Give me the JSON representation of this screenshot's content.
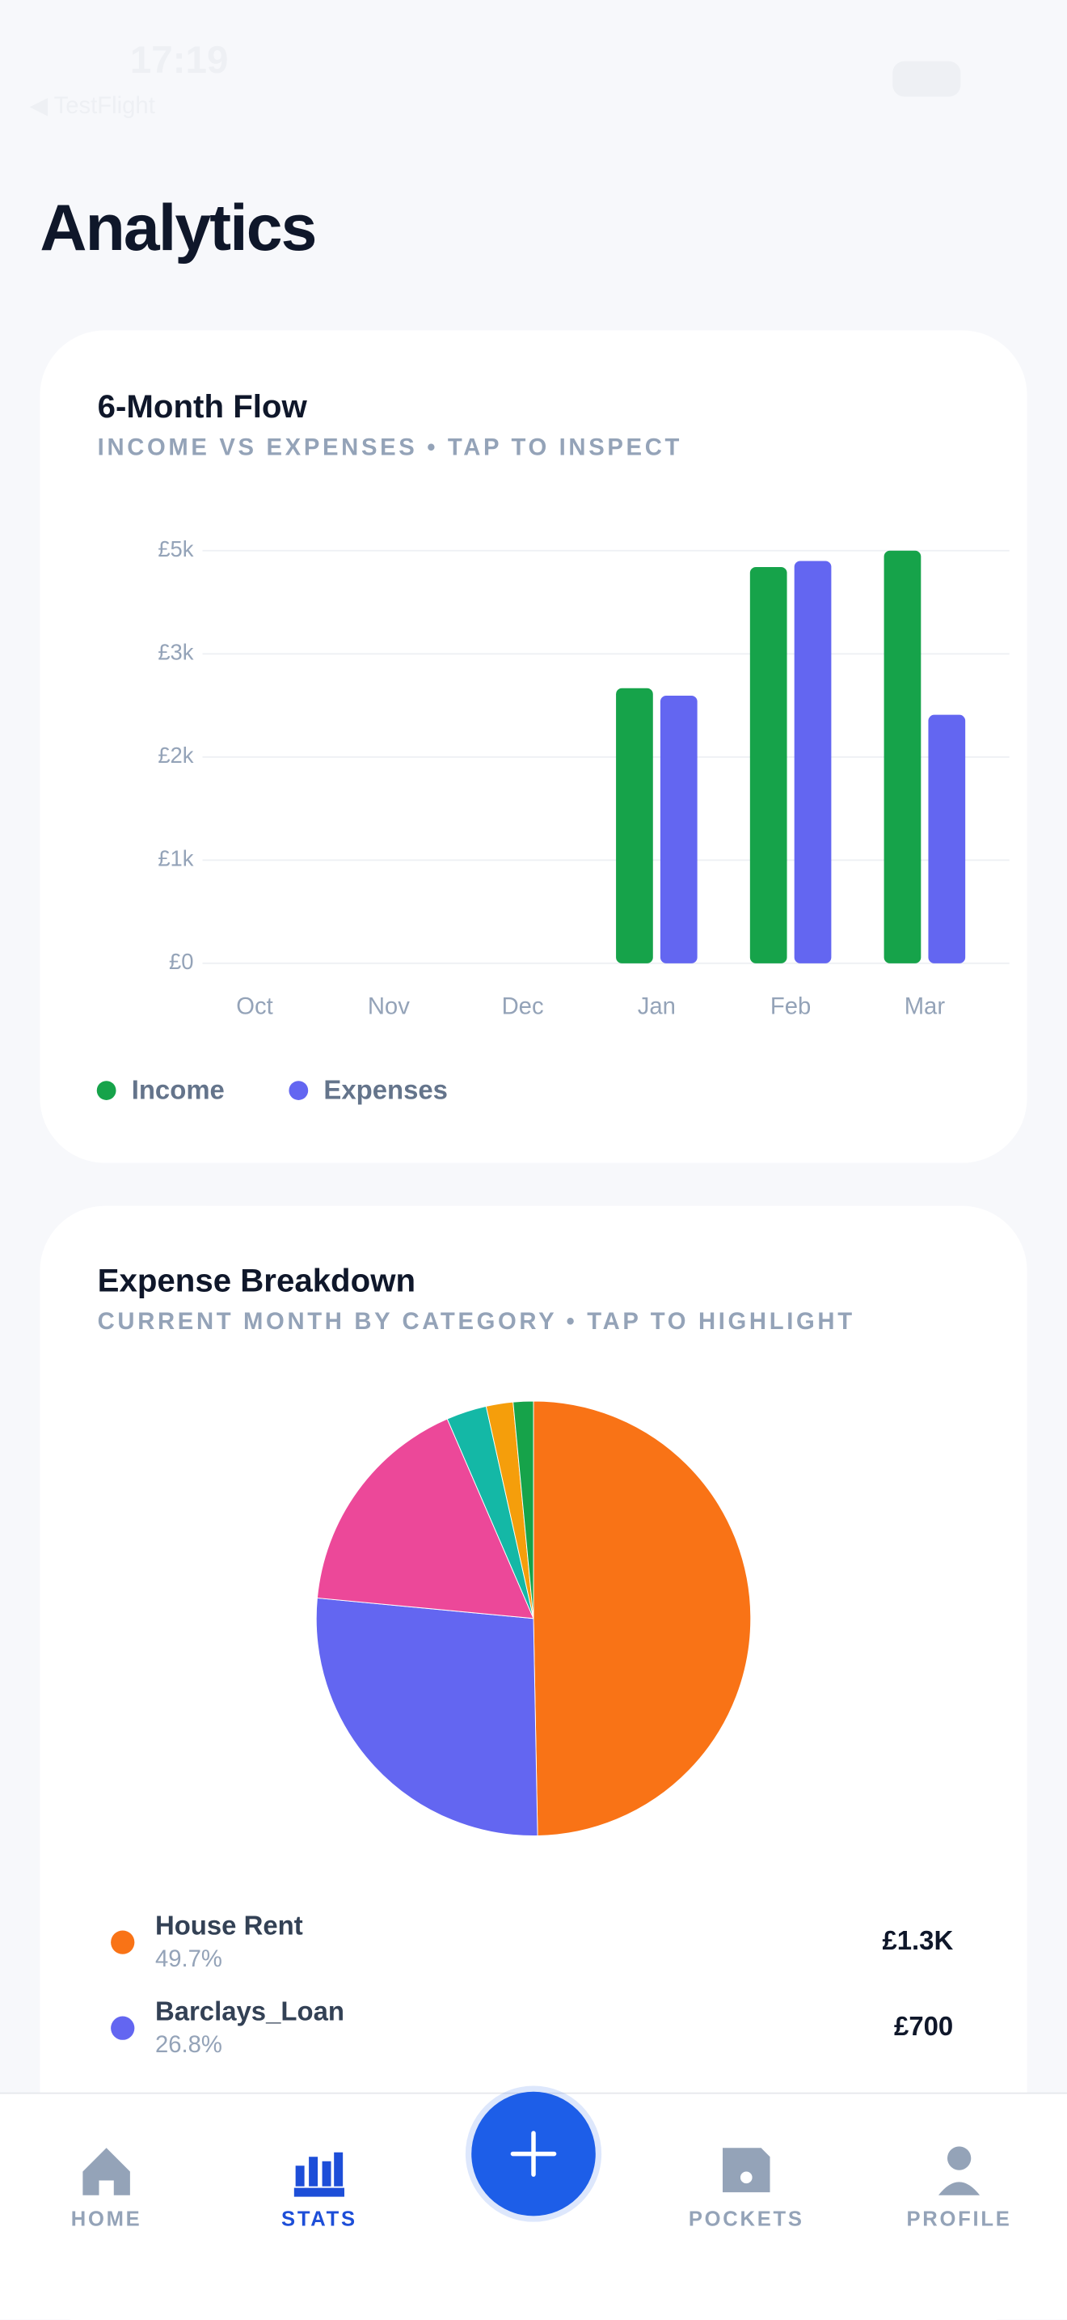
{
  "status_bar": {
    "time": "17:19",
    "back": "◀ TestFlight"
  },
  "header": {
    "title": "Analytics"
  },
  "chart_data": [
    {
      "type": "bar",
      "title": "6-Month Flow",
      "subtitle": "INCOME VS EXPENSES • TAP TO INSPECT",
      "categories": [
        "Oct",
        "Nov",
        "Dec",
        "Jan",
        "Feb",
        "Mar"
      ],
      "series": [
        {
          "name": "Income",
          "color": "#16a34a",
          "values": [
            0,
            0,
            0,
            3067,
            4418,
            4600
          ]
        },
        {
          "name": "Expenses",
          "color": "#6366f1",
          "values": [
            0,
            0,
            0,
            2984,
            4485,
            2770
          ]
        }
      ],
      "ylim": [
        0,
        4600
      ],
      "yticks": [
        {
          "value": 0,
          "label": "£0"
        },
        {
          "value": 1150,
          "label": "£1k"
        },
        {
          "value": 2300,
          "label": "£2k"
        },
        {
          "value": 3450,
          "label": "£3k"
        },
        {
          "value": 4600,
          "label": "£5k"
        }
      ],
      "grid": true,
      "legend": "bottom-left"
    },
    {
      "type": "pie",
      "title": "Expense Breakdown",
      "subtitle": "CURRENT MONTH BY CATEGORY • TAP TO HIGHLIGHT",
      "categories": [
        "House Rent",
        "Barclays_Loan",
        null,
        null,
        null,
        null
      ],
      "values": [
        49.7,
        26.8,
        17,
        3,
        2,
        1.5
      ],
      "value_labels": [
        "49.7%",
        "26.8%",
        null,
        null,
        null,
        null
      ],
      "amount_labels": [
        "£1.3K",
        "£700",
        null,
        null,
        null,
        null
      ],
      "colors": [
        "#f97316",
        "#6366f1",
        "#ec4899",
        "#14b8a6",
        "#f59e0b",
        "#16a34a"
      ]
    }
  ],
  "nav": {
    "items": [
      "HOME",
      "STATS",
      "POCKETS",
      "PROFILE"
    ],
    "active": 1
  }
}
